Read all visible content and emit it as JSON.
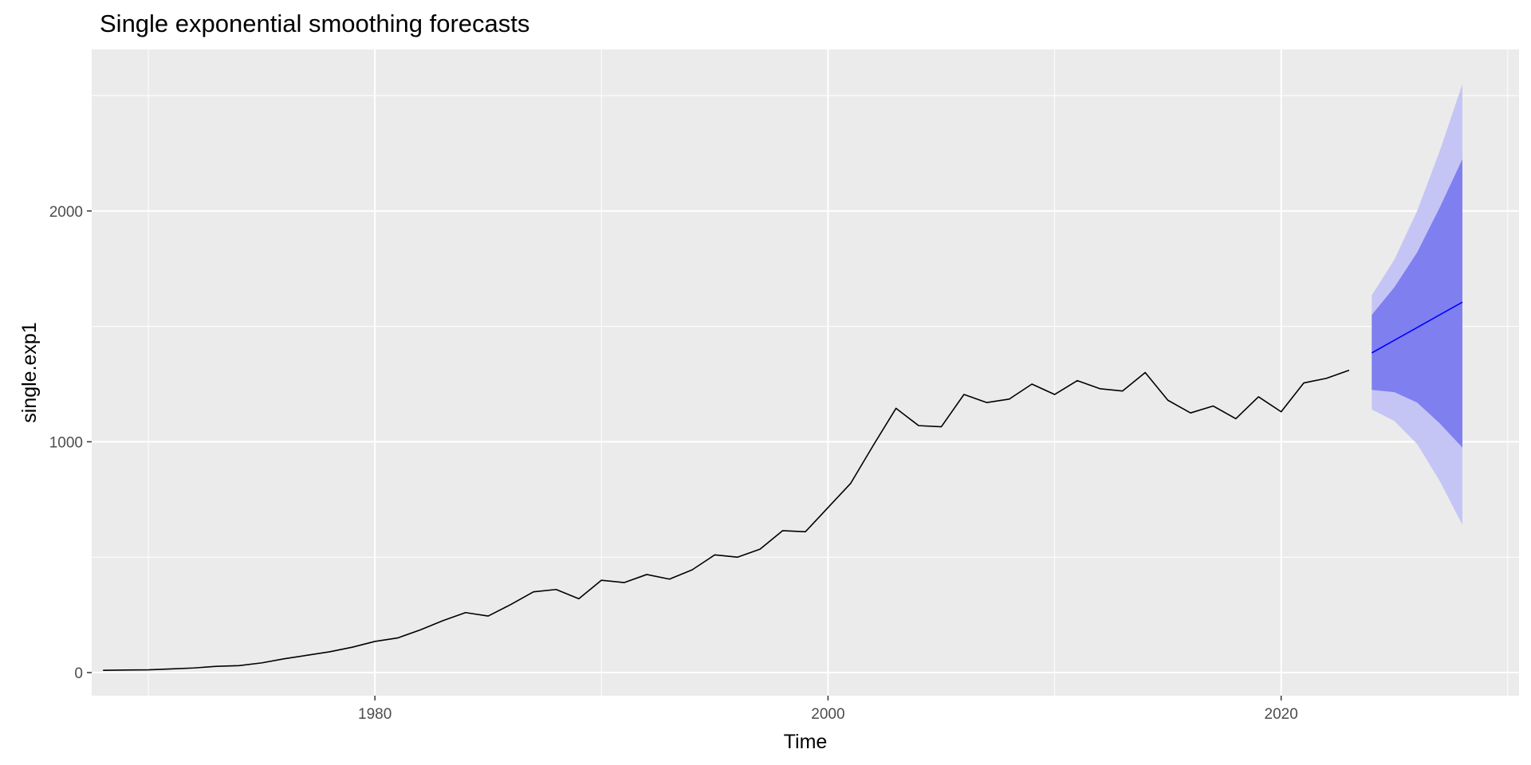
{
  "chart_data": {
    "type": "line",
    "title": "Single exponential smoothing forecasts",
    "xlabel": "Time",
    "ylabel": "single.exp1",
    "xlim": [
      1967.5,
      2030.5
    ],
    "ylim": [
      -100,
      2700
    ],
    "x_ticks": [
      1980,
      2000,
      2020
    ],
    "y_ticks": [
      0,
      1000,
      2000
    ],
    "grid": true,
    "colors": {
      "panel": "#ebebeb",
      "grid": "#ffffff",
      "observed": "#000000",
      "forecast": "#0000ff",
      "band80": "#7f7ff0",
      "band95": "#c5c5f5"
    },
    "observed": {
      "x": [
        1968,
        1969,
        1970,
        1971,
        1972,
        1973,
        1974,
        1975,
        1976,
        1977,
        1978,
        1979,
        1980,
        1981,
        1982,
        1983,
        1984,
        1985,
        1986,
        1987,
        1988,
        1989,
        1990,
        1991,
        1992,
        1993,
        1994,
        1995,
        1996,
        1997,
        1998,
        1999,
        2000,
        2001,
        2002,
        2003,
        2004,
        2005,
        2006,
        2007,
        2008,
        2009,
        2010,
        2011,
        2012,
        2013,
        2014,
        2015,
        2016,
        2017,
        2018,
        2019,
        2020,
        2021,
        2022,
        2023
      ],
      "y": [
        10,
        11,
        12,
        16,
        20,
        27,
        30,
        42,
        60,
        75,
        90,
        110,
        135,
        150,
        185,
        225,
        260,
        245,
        295,
        350,
        360,
        320,
        400,
        390,
        425,
        405,
        445,
        510,
        500,
        535,
        615,
        610,
        715,
        820,
        985,
        1145,
        1070,
        1065,
        1205,
        1170,
        1185,
        1250,
        1205,
        1265,
        1230,
        1220,
        1300,
        1180,
        1125,
        1155,
        1100,
        1195,
        1130,
        1255,
        1275,
        1310
      ]
    },
    "forecast": {
      "x": [
        2024,
        2025,
        2026,
        2027,
        2028
      ],
      "mean": [
        1385,
        1440,
        1495,
        1550,
        1605
      ],
      "lo80": [
        1225,
        1215,
        1170,
        1080,
        975
      ],
      "hi80": [
        1550,
        1670,
        1820,
        2015,
        2225
      ],
      "lo95": [
        1140,
        1090,
        990,
        830,
        640
      ],
      "hi95": [
        1635,
        1790,
        2000,
        2260,
        2550
      ]
    }
  }
}
